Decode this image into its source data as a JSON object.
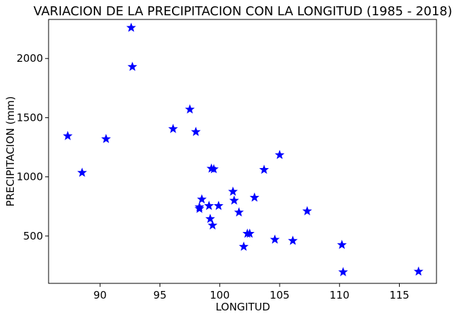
{
  "chart_data": {
    "type": "scatter",
    "title": "VARIACION DE LA PRECIPITACION CON LA LONGITUD (1985 - 2018)",
    "xlabel": "LONGITUD",
    "ylabel": "PRECIPITACION (mm)",
    "xlim": [
      85.7,
      118.1
    ],
    "ylim": [
      100,
      2330
    ],
    "xticks": [
      90,
      95,
      100,
      105,
      110,
      115
    ],
    "yticks": [
      500,
      1000,
      1500,
      2000
    ],
    "marker": "star",
    "color": "#0000ff",
    "grid": false,
    "points": [
      {
        "x": 92.6,
        "y": 2260
      },
      {
        "x": 92.7,
        "y": 1930
      },
      {
        "x": 97.5,
        "y": 1570
      },
      {
        "x": 96.1,
        "y": 1405
      },
      {
        "x": 98.0,
        "y": 1380
      },
      {
        "x": 87.3,
        "y": 1345
      },
      {
        "x": 90.5,
        "y": 1320
      },
      {
        "x": 105.0,
        "y": 1185
      },
      {
        "x": 99.3,
        "y": 1070
      },
      {
        "x": 99.5,
        "y": 1065
      },
      {
        "x": 103.7,
        "y": 1060
      },
      {
        "x": 88.5,
        "y": 1035
      },
      {
        "x": 101.1,
        "y": 875
      },
      {
        "x": 102.9,
        "y": 825
      },
      {
        "x": 98.5,
        "y": 810
      },
      {
        "x": 101.2,
        "y": 800
      },
      {
        "x": 99.1,
        "y": 755
      },
      {
        "x": 99.9,
        "y": 755
      },
      {
        "x": 98.3,
        "y": 745
      },
      {
        "x": 98.3,
        "y": 730
      },
      {
        "x": 107.3,
        "y": 710
      },
      {
        "x": 101.6,
        "y": 700
      },
      {
        "x": 99.2,
        "y": 645
      },
      {
        "x": 99.4,
        "y": 590
      },
      {
        "x": 102.3,
        "y": 520
      },
      {
        "x": 102.5,
        "y": 520
      },
      {
        "x": 104.6,
        "y": 470
      },
      {
        "x": 106.1,
        "y": 460
      },
      {
        "x": 110.2,
        "y": 425
      },
      {
        "x": 102.0,
        "y": 410
      },
      {
        "x": 110.3,
        "y": 195
      },
      {
        "x": 116.6,
        "y": 200
      }
    ]
  }
}
